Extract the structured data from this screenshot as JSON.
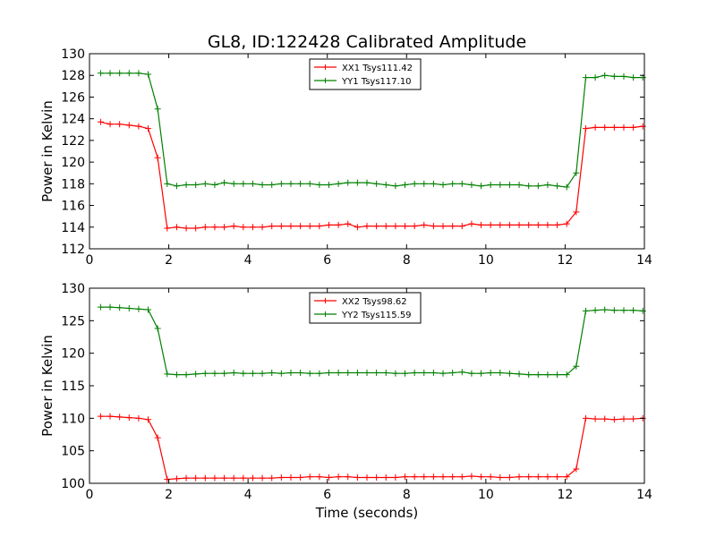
{
  "figure": {
    "title": "GL8, ID:122428 Calibrated Amplitude"
  },
  "chart_data": [
    {
      "type": "line",
      "title": "GL8, ID:122428 Calibrated Amplitude",
      "xlabel": "",
      "ylabel": "Power in Kelvin",
      "xlim": [
        0,
        14
      ],
      "ylim": [
        112,
        130
      ],
      "xticks": [
        0,
        2,
        4,
        6,
        8,
        10,
        12,
        14
      ],
      "yticks": [
        112,
        114,
        116,
        118,
        120,
        122,
        124,
        126,
        128,
        130
      ],
      "grid": false,
      "legend_position": "top-center",
      "x": [
        0.28,
        0.52,
        0.76,
        1.0,
        1.24,
        1.48,
        1.72,
        1.96,
        2.2,
        2.44,
        2.68,
        2.92,
        3.16,
        3.4,
        3.64,
        3.88,
        4.12,
        4.36,
        4.6,
        4.84,
        5.08,
        5.32,
        5.56,
        5.8,
        6.04,
        6.28,
        6.52,
        6.76,
        7.0,
        7.24,
        7.48,
        7.72,
        7.96,
        8.2,
        8.44,
        8.68,
        8.92,
        9.16,
        9.4,
        9.64,
        9.88,
        10.12,
        10.36,
        10.6,
        10.84,
        11.08,
        11.32,
        11.56,
        11.8,
        12.04,
        12.28,
        12.52,
        12.76,
        13.0,
        13.24,
        13.48,
        13.72,
        13.96
      ],
      "series": [
        {
          "name": "XX1 Tsys111.42",
          "color": "#ff0000",
          "values": [
            123.7,
            123.5,
            123.5,
            123.4,
            123.3,
            123.1,
            120.4,
            113.9,
            114.0,
            113.9,
            113.9,
            114.0,
            114.0,
            114.0,
            114.1,
            114.0,
            114.0,
            114.0,
            114.1,
            114.1,
            114.1,
            114.1,
            114.1,
            114.1,
            114.2,
            114.2,
            114.3,
            114.0,
            114.1,
            114.1,
            114.1,
            114.1,
            114.1,
            114.1,
            114.2,
            114.1,
            114.1,
            114.1,
            114.1,
            114.3,
            114.2,
            114.2,
            114.2,
            114.2,
            114.2,
            114.2,
            114.2,
            114.2,
            114.2,
            114.3,
            115.4,
            123.1,
            123.2,
            123.2,
            123.2,
            123.2,
            123.2,
            123.3
          ]
        },
        {
          "name": "YY1 Tsys117.10",
          "color": "#008000",
          "values": [
            128.2,
            128.2,
            128.2,
            128.2,
            128.2,
            128.1,
            124.9,
            118.0,
            117.8,
            117.9,
            117.9,
            118.0,
            117.9,
            118.1,
            118.0,
            118.0,
            118.0,
            117.9,
            117.9,
            118.0,
            118.0,
            118.0,
            118.0,
            117.9,
            117.9,
            118.0,
            118.1,
            118.1,
            118.1,
            118.0,
            117.9,
            117.8,
            117.9,
            118.0,
            118.0,
            118.0,
            117.9,
            118.0,
            118.0,
            117.9,
            117.8,
            117.9,
            117.9,
            117.9,
            117.9,
            117.8,
            117.8,
            117.9,
            117.8,
            117.7,
            119.0,
            127.8,
            127.8,
            128.0,
            127.9,
            127.9,
            127.8,
            127.8
          ]
        }
      ]
    },
    {
      "type": "line",
      "title": "",
      "xlabel": "Time (seconds)",
      "ylabel": "Power in Kelvin",
      "xlim": [
        0,
        14
      ],
      "ylim": [
        100,
        130
      ],
      "xticks": [
        0,
        2,
        4,
        6,
        8,
        10,
        12,
        14
      ],
      "yticks": [
        100,
        105,
        110,
        115,
        120,
        125,
        130
      ],
      "grid": false,
      "legend_position": "top-center",
      "x": [
        0.28,
        0.52,
        0.76,
        1.0,
        1.24,
        1.48,
        1.72,
        1.96,
        2.2,
        2.44,
        2.68,
        2.92,
        3.16,
        3.4,
        3.64,
        3.88,
        4.12,
        4.36,
        4.6,
        4.84,
        5.08,
        5.32,
        5.56,
        5.8,
        6.04,
        6.28,
        6.52,
        6.76,
        7.0,
        7.24,
        7.48,
        7.72,
        7.96,
        8.2,
        8.44,
        8.68,
        8.92,
        9.16,
        9.4,
        9.64,
        9.88,
        10.12,
        10.36,
        10.6,
        10.84,
        11.08,
        11.32,
        11.56,
        11.8,
        12.04,
        12.28,
        12.52,
        12.76,
        13.0,
        13.24,
        13.48,
        13.72,
        13.96
      ],
      "series": [
        {
          "name": "XX2 Tsys98.62",
          "color": "#ff0000",
          "values": [
            110.3,
            110.3,
            110.2,
            110.1,
            110.0,
            109.8,
            107.0,
            100.6,
            100.7,
            100.8,
            100.8,
            100.8,
            100.8,
            100.8,
            100.8,
            100.8,
            100.8,
            100.8,
            100.8,
            100.9,
            100.9,
            100.9,
            101.0,
            101.0,
            100.9,
            101.0,
            101.0,
            100.9,
            100.9,
            100.9,
            100.9,
            100.9,
            101.0,
            101.0,
            101.0,
            101.0,
            101.0,
            101.0,
            101.0,
            101.1,
            101.0,
            101.0,
            100.9,
            100.9,
            101.0,
            101.0,
            101.0,
            101.0,
            101.0,
            101.0,
            102.2,
            110.0,
            109.9,
            109.9,
            109.8,
            109.9,
            109.9,
            110.0
          ]
        },
        {
          "name": "YY2 Tsys115.59",
          "color": "#008000",
          "values": [
            127.1,
            127.1,
            127.0,
            126.9,
            126.8,
            126.7,
            123.8,
            116.8,
            116.7,
            116.7,
            116.8,
            116.9,
            116.9,
            116.9,
            117.0,
            116.9,
            116.9,
            116.9,
            117.0,
            116.9,
            117.0,
            117.0,
            116.9,
            116.9,
            117.0,
            117.0,
            117.0,
            117.0,
            117.0,
            117.0,
            117.0,
            116.9,
            116.9,
            117.0,
            117.0,
            117.0,
            116.9,
            117.0,
            117.1,
            116.9,
            116.9,
            117.0,
            117.0,
            116.9,
            116.8,
            116.7,
            116.7,
            116.7,
            116.7,
            116.7,
            118.0,
            126.5,
            126.6,
            126.7,
            126.6,
            126.6,
            126.6,
            126.5
          ]
        }
      ]
    }
  ]
}
